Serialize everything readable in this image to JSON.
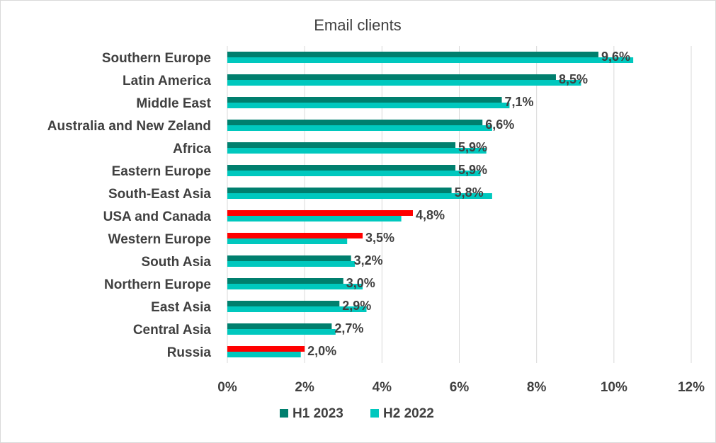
{
  "chart_data": {
    "type": "bar",
    "orientation": "horizontal",
    "title": "Email clients",
    "categories": [
      "Southern Europe",
      "Latin America",
      "Middle East",
      "Australia and New Zeland",
      "Africa",
      "Eastern Europe",
      "South-East Asia",
      "USA and Canada",
      "Western Europe",
      "South Asia",
      "Northern Europe",
      "East Asia",
      "Central Asia",
      "Russia"
    ],
    "series": [
      {
        "name": "H1 2023",
        "color": "#007F6E",
        "values": [
          9.6,
          8.5,
          7.1,
          6.6,
          5.9,
          5.9,
          5.8,
          4.8,
          3.5,
          3.2,
          3.0,
          2.9,
          2.7,
          2.0
        ],
        "highlight_color": "#FF0000",
        "highlight_categories": [
          "USA and Canada",
          "Western Europe",
          "Russia"
        ]
      },
      {
        "name": "H2 2022",
        "color": "#00C8BE",
        "values": [
          10.5,
          9.15,
          7.3,
          6.85,
          6.7,
          6.55,
          6.85,
          4.5,
          3.1,
          3.3,
          3.5,
          3.6,
          2.8,
          1.9
        ]
      }
    ],
    "data_labels": [
      "9,6%",
      "8,5%",
      "7,1%",
      "6,6%",
      "5,9%",
      "5,9%",
      "5,8%",
      "4,8%",
      "3,5%",
      "3,2%",
      "3,0%",
      "2,9%",
      "2,7%",
      "2,0%"
    ],
    "x_ticks": [
      "0%",
      "2%",
      "4%",
      "6%",
      "8%",
      "10%",
      "12%"
    ],
    "xlim": [
      0,
      12
    ],
    "grid": true,
    "legend_position": "bottom"
  }
}
